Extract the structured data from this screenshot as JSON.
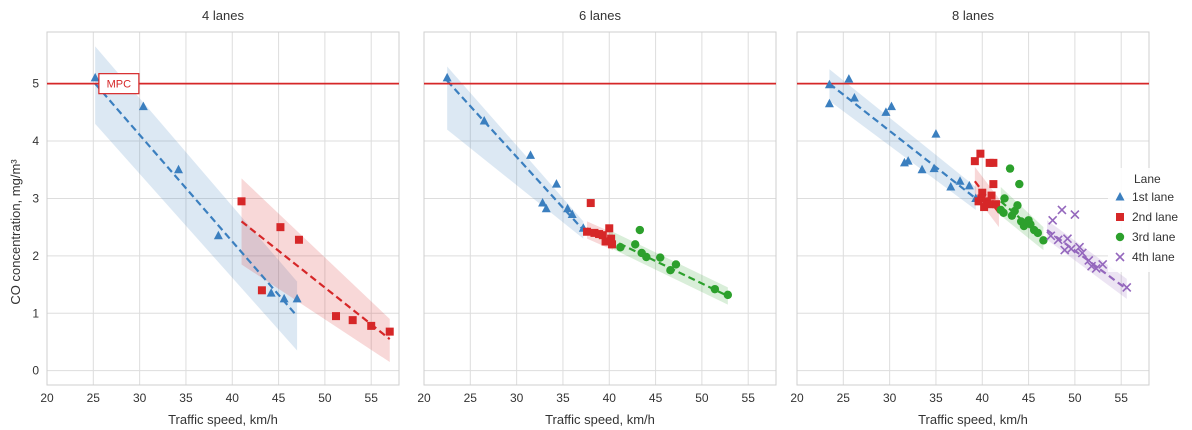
{
  "figure": {
    "ylabel": "CO concentration, mg/m³",
    "xlabel": "Traffic speed, km/h",
    "mpc_label": "MPC",
    "mpc_value": 5,
    "legend_title": "Lane"
  },
  "colors": {
    "lane1": "#3b7fbf",
    "lane2": "#d62728",
    "lane3": "#2ca02c",
    "lane4": "#9467bd",
    "mpc": "#d62728",
    "grid": "#dddddd"
  },
  "chart_data": [
    {
      "type": "scatter",
      "title": "4 lanes",
      "xlim": [
        20,
        58
      ],
      "ylim": [
        -0.25,
        5.9
      ],
      "xticks": [
        20,
        25,
        30,
        35,
        40,
        45,
        50,
        55
      ],
      "yticks": [
        0,
        1,
        2,
        3,
        4,
        5
      ],
      "series": [
        {
          "name": "1st lane",
          "marker": "triangle",
          "points": [
            [
              25.2,
              5.1
            ],
            [
              30.4,
              4.6
            ],
            [
              34.2,
              3.5
            ],
            [
              38.5,
              2.35
            ],
            [
              44.2,
              1.35
            ],
            [
              45.6,
              1.25
            ],
            [
              47.0,
              1.25
            ]
          ],
          "fit": [
            [
              25.2,
              5.0
            ],
            [
              47.0,
              0.95
            ]
          ],
          "band": {
            "upper": [
              [
                25.2,
                5.65
              ],
              [
                47.0,
                1.55
              ]
            ],
            "lower": [
              [
                25.2,
                4.3
              ],
              [
                47.0,
                0.35
              ]
            ]
          }
        },
        {
          "name": "2nd lane",
          "marker": "square",
          "points": [
            [
              41.0,
              2.95
            ],
            [
              43.2,
              1.4
            ],
            [
              45.2,
              2.5
            ],
            [
              47.2,
              2.28
            ],
            [
              51.2,
              0.95
            ],
            [
              53.0,
              0.88
            ],
            [
              55.0,
              0.78
            ],
            [
              57.0,
              0.68
            ]
          ],
          "fit": [
            [
              41.0,
              2.6
            ],
            [
              57.0,
              0.55
            ]
          ],
          "band": {
            "upper": [
              [
                41.0,
                3.35
              ],
              [
                57.0,
                0.9
              ]
            ],
            "lower": [
              [
                41.0,
                1.85
              ],
              [
                57.0,
                0.15
              ]
            ]
          }
        }
      ]
    },
    {
      "type": "scatter",
      "title": "6 lanes",
      "xlim": [
        20,
        58
      ],
      "ylim": [
        -0.25,
        5.9
      ],
      "xticks": [
        20,
        25,
        30,
        35,
        40,
        45,
        50,
        55
      ],
      "yticks": [
        0,
        1,
        2,
        3,
        4,
        5
      ],
      "series": [
        {
          "name": "1st lane",
          "marker": "triangle",
          "points": [
            [
              22.5,
              5.1
            ],
            [
              26.5,
              4.35
            ],
            [
              31.5,
              3.75
            ],
            [
              32.8,
              2.92
            ],
            [
              33.2,
              2.82
            ],
            [
              34.3,
              3.25
            ],
            [
              35.5,
              2.82
            ],
            [
              36.0,
              2.72
            ],
            [
              37.2,
              2.48
            ]
          ],
          "fit": [
            [
              22.5,
              5.05
            ],
            [
              37.2,
              2.45
            ]
          ],
          "band": {
            "upper": [
              [
                22.5,
                5.3
              ],
              [
                37.2,
                2.6
              ]
            ],
            "lower": [
              [
                22.5,
                4.2
              ],
              [
                37.2,
                2.3
              ]
            ]
          }
        },
        {
          "name": "2nd lane",
          "marker": "square",
          "points": [
            [
              38.0,
              2.92
            ],
            [
              37.6,
              2.42
            ],
            [
              38.4,
              2.4
            ],
            [
              38.9,
              2.38
            ],
            [
              39.3,
              2.36
            ],
            [
              40.0,
              2.48
            ],
            [
              40.2,
              2.3
            ],
            [
              39.6,
              2.25
            ],
            [
              40.3,
              2.2
            ]
          ],
          "fit": [
            [
              37.6,
              2.48
            ],
            [
              40.4,
              2.26
            ]
          ],
          "band": {
            "upper": [
              [
                37.6,
                2.6
              ],
              [
                40.4,
                2.4
              ]
            ],
            "lower": [
              [
                37.6,
                2.3
              ],
              [
                40.4,
                2.1
              ]
            ]
          }
        },
        {
          "name": "3rd lane",
          "marker": "circle",
          "points": [
            [
              41.2,
              2.15
            ],
            [
              42.8,
              2.2
            ],
            [
              43.3,
              2.45
            ],
            [
              43.5,
              2.05
            ],
            [
              44.0,
              1.98
            ],
            [
              45.5,
              1.97
            ],
            [
              46.6,
              1.75
            ],
            [
              47.2,
              1.85
            ],
            [
              51.4,
              1.42
            ],
            [
              52.8,
              1.32
            ]
          ],
          "fit": [
            [
              40.0,
              2.3
            ],
            [
              52.8,
              1.3
            ]
          ],
          "band": {
            "upper": [
              [
                40.0,
                2.45
              ],
              [
                52.8,
                1.45
              ]
            ],
            "lower": [
              [
                40.0,
                2.15
              ],
              [
                52.8,
                1.15
              ]
            ]
          }
        }
      ]
    },
    {
      "type": "scatter",
      "title": "8 lanes",
      "xlim": [
        20,
        58
      ],
      "ylim": [
        -0.25,
        5.9
      ],
      "xticks": [
        20,
        25,
        30,
        35,
        40,
        45,
        50,
        55
      ],
      "yticks": [
        0,
        1,
        2,
        3,
        4,
        5
      ],
      "legend": "right",
      "series": [
        {
          "name": "1st lane",
          "marker": "triangle",
          "points": [
            [
              23.5,
              4.98
            ],
            [
              23.5,
              4.65
            ],
            [
              25.6,
              5.08
            ],
            [
              26.2,
              4.75
            ],
            [
              29.6,
              4.5
            ],
            [
              30.2,
              4.6
            ],
            [
              31.6,
              3.62
            ],
            [
              32.0,
              3.65
            ],
            [
              33.5,
              3.5
            ],
            [
              35.0,
              4.12
            ],
            [
              34.8,
              3.52
            ],
            [
              36.6,
              3.2
            ],
            [
              37.6,
              3.3
            ],
            [
              38.6,
              3.22
            ],
            [
              39.3,
              3.0
            ]
          ],
          "fit": [
            [
              23.5,
              5.0
            ],
            [
              39.3,
              3.0
            ]
          ],
          "band": {
            "upper": [
              [
                23.5,
                5.25
              ],
              [
                39.3,
                3.2
              ]
            ],
            "lower": [
              [
                23.5,
                4.7
              ],
              [
                39.3,
                2.8
              ]
            ]
          }
        },
        {
          "name": "2nd lane",
          "marker": "square",
          "points": [
            [
              39.2,
              3.65
            ],
            [
              39.8,
              3.78
            ],
            [
              40.8,
              3.62
            ],
            [
              41.2,
              3.62
            ],
            [
              40.0,
              3.1
            ],
            [
              41.2,
              3.25
            ],
            [
              39.9,
              3.0
            ],
            [
              40.5,
              2.95
            ],
            [
              40.8,
              2.9
            ],
            [
              41.5,
              2.9
            ],
            [
              40.2,
              2.85
            ],
            [
              39.6,
              2.95
            ],
            [
              41.0,
              3.05
            ]
          ],
          "fit": [
            [
              39.2,
              3.3
            ],
            [
              41.8,
              2.75
            ]
          ],
          "band": {
            "upper": [
              [
                39.2,
                3.55
              ],
              [
                41.8,
                3.0
              ]
            ],
            "lower": [
              [
                39.2,
                3.05
              ],
              [
                41.8,
                2.5
              ]
            ]
          }
        },
        {
          "name": "3rd lane",
          "marker": "circle",
          "points": [
            [
              43.0,
              3.52
            ],
            [
              44.0,
              3.25
            ],
            [
              42.4,
              3.0
            ],
            [
              42.3,
              2.75
            ],
            [
              43.2,
              2.7
            ],
            [
              43.8,
              2.88
            ],
            [
              44.2,
              2.6
            ],
            [
              44.5,
              2.52
            ],
            [
              45.0,
              2.62
            ],
            [
              45.6,
              2.45
            ],
            [
              46.0,
              2.4
            ],
            [
              46.6,
              2.27
            ],
            [
              42.0,
              2.8
            ],
            [
              43.5,
              2.78
            ],
            [
              45.2,
              2.55
            ]
          ],
          "fit": [
            [
              42.0,
              2.95
            ],
            [
              46.6,
              2.3
            ]
          ],
          "band": {
            "upper": [
              [
                42.0,
                3.2
              ],
              [
                46.6,
                2.5
              ]
            ],
            "lower": [
              [
                42.0,
                2.7
              ],
              [
                46.6,
                2.1
              ]
            ]
          }
        },
        {
          "name": "4th lane",
          "marker": "x",
          "points": [
            [
              47.6,
              2.62
            ],
            [
              48.6,
              2.8
            ],
            [
              50.0,
              2.72
            ],
            [
              47.4,
              2.35
            ],
            [
              48.2,
              2.28
            ],
            [
              49.2,
              2.3
            ],
            [
              49.6,
              2.12
            ],
            [
              50.5,
              2.15
            ],
            [
              50.8,
              2.05
            ],
            [
              51.5,
              1.92
            ],
            [
              51.8,
              1.82
            ],
            [
              52.3,
              1.78
            ],
            [
              53.0,
              1.85
            ],
            [
              55.6,
              1.45
            ],
            [
              48.9,
              2.1
            ]
          ],
          "fit": [
            [
              47.0,
              2.45
            ],
            [
              55.6,
              1.42
            ]
          ],
          "band": {
            "upper": [
              [
                47.0,
                2.62
              ],
              [
                55.6,
                1.6
              ]
            ],
            "lower": [
              [
                47.0,
                2.28
              ],
              [
                55.6,
                1.25
              ]
            ]
          }
        }
      ]
    }
  ]
}
